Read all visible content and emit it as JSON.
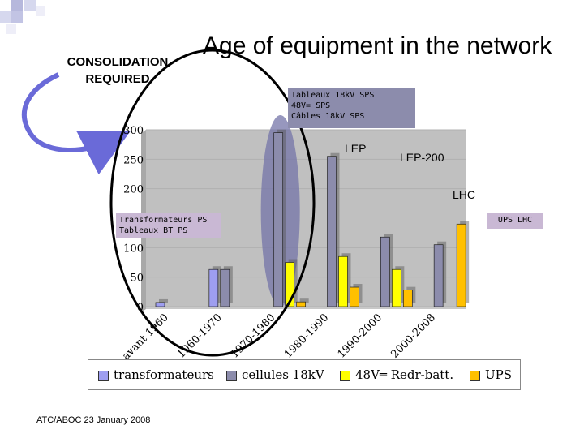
{
  "slide": {
    "title": "Age of equipment in the network",
    "consolidation": "CONSOLIDATION REQUIRED",
    "footer": "ATC/ABOC 23 January 2008"
  },
  "annotations": {
    "note_top": [
      "Tableaux 18kV SPS",
      "48V= SPS",
      "Câbles 18kV SPS"
    ],
    "note_left": [
      "Transformateurs PS",
      "Tableaux BT PS"
    ],
    "ups_lhc": "UPS LHC",
    "lep": "LEP",
    "lep200": "LEP-200",
    "lhc": "LHC"
  },
  "colors": {
    "transformateurs": "#9e9ef0",
    "cellules": "#8c8cac",
    "v48": "#ffff00",
    "ups": "#ffc000",
    "highlight_ellipse": "#7474a8",
    "notes": "#8c8cac"
  },
  "chart_data": {
    "type": "bar",
    "categories": [
      "avant 1960",
      "1960-1970",
      "1970-1980",
      "1980-1990",
      "1990-2000",
      "2000-2008"
    ],
    "ylim": [
      0,
      300
    ],
    "yticks": [
      0,
      50,
      100,
      200,
      250,
      300
    ],
    "series": [
      {
        "name": "transformateurs",
        "values": [
          7,
          63,
          0,
          0,
          0,
          0
        ]
      },
      {
        "name": "cellules 18kV",
        "values": [
          0,
          63,
          295,
          255,
          118,
          105
        ]
      },
      {
        "name": "48V═ Redr-batt.",
        "values": [
          0,
          0,
          75,
          85,
          63,
          0
        ]
      },
      {
        "name": "UPS",
        "values": [
          0,
          0,
          8,
          33,
          28,
          140
        ]
      }
    ],
    "legend": [
      "transformateurs",
      "cellules 18kV",
      "48V═ Redr-batt.",
      "UPS"
    ]
  }
}
